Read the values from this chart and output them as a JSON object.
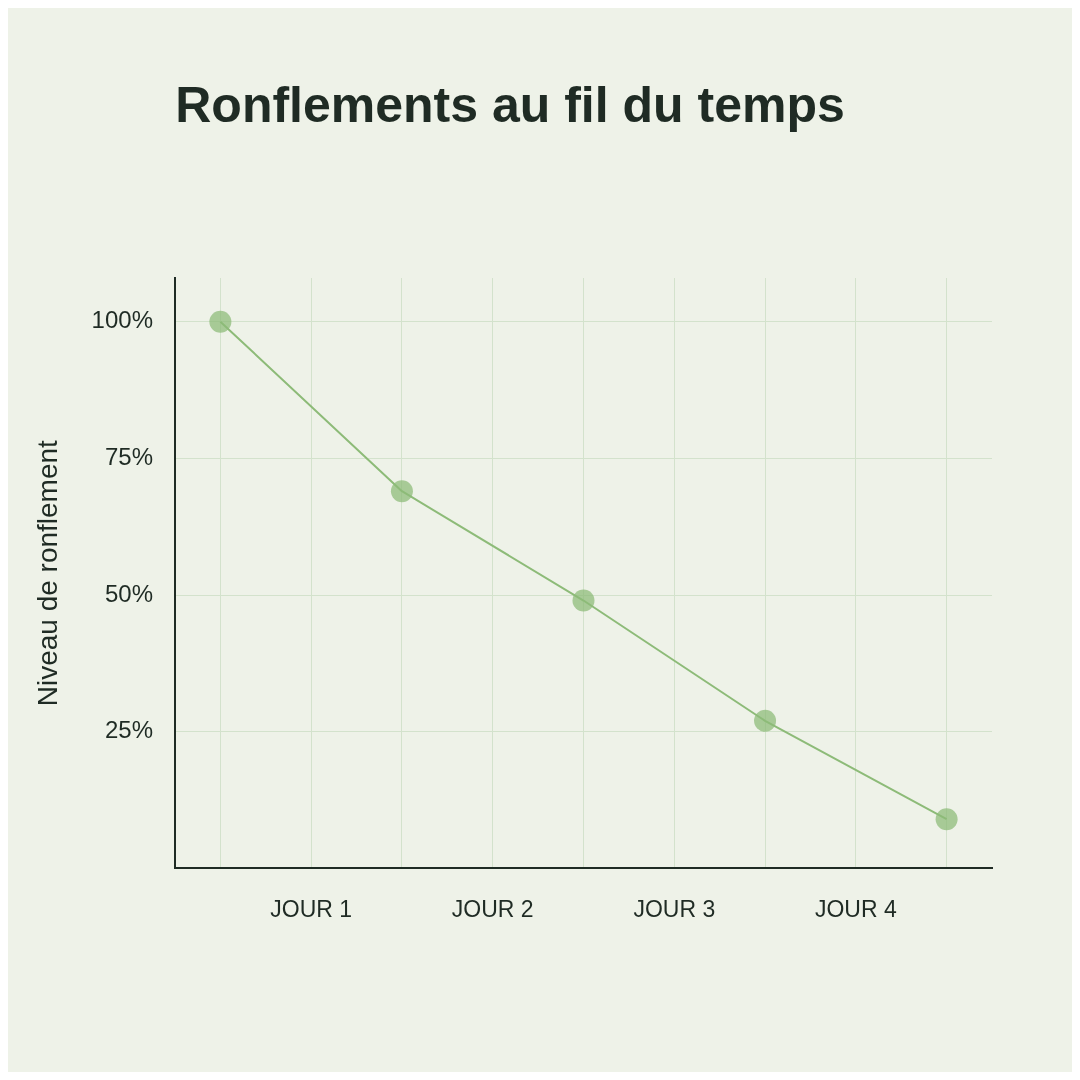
{
  "chart_data": {
    "type": "line",
    "title": "Ronflements au fil du temps",
    "ylabel": "Niveau de ronflement",
    "categories": [
      null,
      "JOUR 1",
      null,
      "JOUR 2",
      null,
      "JOUR 3",
      null,
      "JOUR 4",
      null
    ],
    "series": [
      {
        "color": "#8dbb78",
        "values": [
          100,
          null,
          69,
          null,
          49,
          null,
          27,
          null,
          9
        ]
      }
    ],
    "ylim": [
      0,
      108
    ],
    "yticks": [
      {
        "value": 25,
        "label": "25%"
      },
      {
        "value": 50,
        "label": "50%"
      },
      {
        "value": 75,
        "label": "75%"
      },
      {
        "value": 100,
        "label": "100%"
      }
    ],
    "grid": true,
    "legend": false,
    "marker": "circle",
    "line_style": "solid"
  }
}
